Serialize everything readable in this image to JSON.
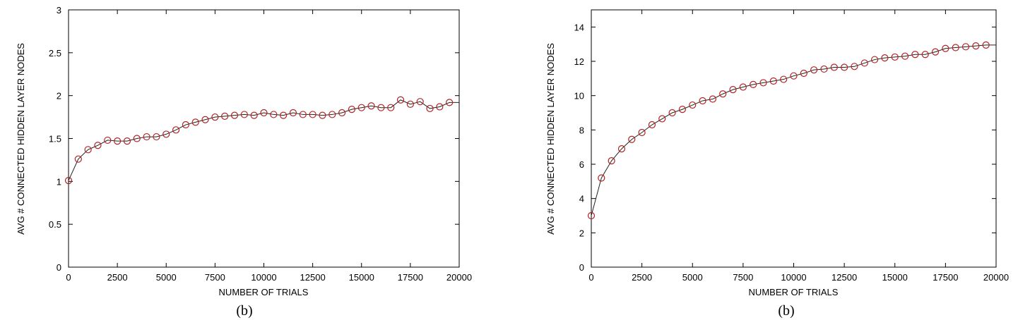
{
  "chart_data": [
    {
      "type": "line",
      "caption": "(b)",
      "xlabel": "NUMBER OF TRIALS",
      "ylabel": "AVG # CONNECTED HIDDEN LAYER NODES",
      "xlim": [
        0,
        20000
      ],
      "ylim": [
        0,
        3
      ],
      "xticks": [
        "0",
        "2500",
        "5000",
        "7500",
        "10000",
        "12500",
        "15000",
        "17500",
        "20000"
      ],
      "yticks": [
        "0",
        "0.5",
        "1",
        "1.5",
        "2",
        "2.5",
        "3"
      ],
      "grid": false,
      "series": [
        {
          "marker": "circle",
          "color": "#b22222",
          "x": [
            0,
            500,
            1000,
            1500,
            2000,
            2500,
            3000,
            3500,
            4000,
            4500,
            5000,
            5500,
            6000,
            6500,
            7000,
            7500,
            8000,
            8500,
            9000,
            9500,
            10000,
            10500,
            11000,
            11500,
            12000,
            12500,
            13000,
            13500,
            14000,
            14500,
            15000,
            15500,
            16000,
            16500,
            17000,
            17500,
            18000,
            18500,
            19000,
            19500
          ],
          "values": [
            1.01,
            1.26,
            1.37,
            1.42,
            1.48,
            1.47,
            1.47,
            1.5,
            1.52,
            1.52,
            1.55,
            1.6,
            1.66,
            1.69,
            1.72,
            1.75,
            1.76,
            1.77,
            1.78,
            1.77,
            1.8,
            1.78,
            1.77,
            1.8,
            1.78,
            1.78,
            1.77,
            1.78,
            1.8,
            1.84,
            1.86,
            1.88,
            1.86,
            1.86,
            1.95,
            1.9,
            1.93,
            1.85,
            1.87,
            1.92
          ]
        }
      ]
    },
    {
      "type": "line",
      "caption": "(b)",
      "xlabel": "NUMBER OF TRIALS",
      "ylabel": "AVG # CONNECTED HIDDEN LAYER NODES",
      "xlim": [
        0,
        20000
      ],
      "ylim": [
        0,
        15
      ],
      "xticks": [
        "0",
        "2500",
        "5000",
        "7500",
        "10000",
        "12500",
        "15000",
        "17500",
        "20000"
      ],
      "yticks": [
        "0",
        "2",
        "4",
        "6",
        "8",
        "10",
        "12",
        "14"
      ],
      "grid": false,
      "series": [
        {
          "marker": "circle",
          "color": "#b22222",
          "x": [
            0,
            500,
            1000,
            1500,
            2000,
            2500,
            3000,
            3500,
            4000,
            4500,
            5000,
            5500,
            6000,
            6500,
            7000,
            7500,
            8000,
            8500,
            9000,
            9500,
            10000,
            10500,
            11000,
            11500,
            12000,
            12500,
            13000,
            13500,
            14000,
            14500,
            15000,
            15500,
            16000,
            16500,
            17000,
            17500,
            18000,
            18500,
            19000,
            19500
          ],
          "values": [
            3.0,
            5.2,
            6.2,
            6.9,
            7.45,
            7.85,
            8.3,
            8.65,
            9.0,
            9.2,
            9.45,
            9.7,
            9.8,
            10.1,
            10.35,
            10.5,
            10.65,
            10.75,
            10.85,
            10.95,
            11.15,
            11.3,
            11.5,
            11.55,
            11.65,
            11.65,
            11.7,
            11.9,
            12.1,
            12.2,
            12.25,
            12.3,
            12.4,
            12.4,
            12.55,
            12.75,
            12.8,
            12.85,
            12.9,
            12.95
          ]
        }
      ]
    }
  ]
}
